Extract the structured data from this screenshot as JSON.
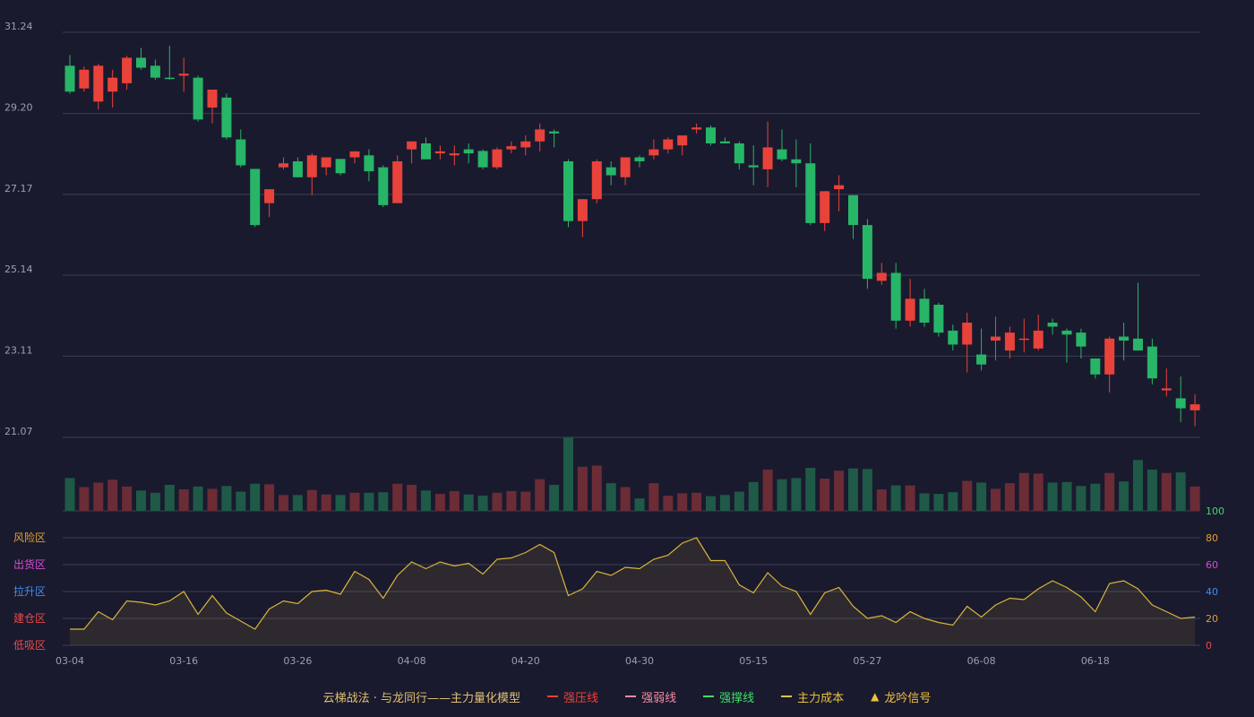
{
  "chart_data": {
    "type": "candlestick",
    "price_axis": {
      "min": 21.07,
      "max": 31.24,
      "ticks": [
        "31.24",
        "29.20",
        "27.17",
        "25.14",
        "23.11",
        "21.07"
      ]
    },
    "x_ticks": [
      {
        "i": 0,
        "label": "03-04"
      },
      {
        "i": 8,
        "label": "03-16"
      },
      {
        "i": 16,
        "label": "03-26"
      },
      {
        "i": 24,
        "label": "04-08"
      },
      {
        "i": 32,
        "label": "04-20"
      },
      {
        "i": 40,
        "label": "04-30"
      },
      {
        "i": 48,
        "label": "05-15"
      },
      {
        "i": 56,
        "label": "05-27"
      },
      {
        "i": 64,
        "label": "06-08"
      },
      {
        "i": 72,
        "label": "06-18"
      }
    ],
    "candles": [
      [
        30.4,
        29.75,
        30.67,
        29.7
      ],
      [
        29.83,
        30.3,
        30.38,
        29.75
      ],
      [
        29.5,
        30.4,
        30.45,
        29.3
      ],
      [
        29.75,
        30.1,
        30.3,
        29.35
      ],
      [
        29.96,
        30.6,
        30.65,
        29.8
      ],
      [
        30.6,
        30.35,
        30.85,
        30.3
      ],
      [
        30.4,
        30.1,
        30.55,
        30.05
      ],
      [
        30.1,
        30.07,
        30.9,
        30.05
      ],
      [
        30.15,
        30.2,
        30.6,
        29.75
      ],
      [
        30.1,
        29.05,
        30.15,
        29.0
      ],
      [
        29.35,
        29.8,
        29.8,
        28.95
      ],
      [
        29.6,
        28.6,
        29.7,
        28.55
      ],
      [
        28.55,
        27.9,
        28.8,
        27.85
      ],
      [
        27.81,
        26.4,
        27.81,
        26.35
      ],
      [
        26.95,
        27.3,
        27.3,
        26.6
      ],
      [
        27.85,
        27.95,
        28.1,
        27.8
      ],
      [
        28.0,
        27.6,
        28.1,
        27.6
      ],
      [
        27.6,
        28.15,
        28.2,
        27.15
      ],
      [
        27.85,
        28.1,
        28.1,
        27.65
      ],
      [
        28.06,
        27.7,
        27.8,
        27.65
      ],
      [
        28.1,
        28.25,
        28.25,
        27.95
      ],
      [
        28.15,
        27.75,
        28.3,
        27.5
      ],
      [
        27.85,
        26.9,
        27.9,
        26.85
      ],
      [
        26.95,
        28.0,
        28.15,
        26.95
      ],
      [
        28.3,
        28.5,
        28.5,
        27.95
      ],
      [
        28.45,
        28.05,
        28.6,
        28.05
      ],
      [
        28.2,
        28.25,
        28.4,
        28.05
      ],
      [
        28.15,
        28.2,
        28.4,
        27.9
      ],
      [
        28.3,
        28.2,
        28.45,
        27.95
      ],
      [
        28.26,
        27.85,
        28.3,
        27.8
      ],
      [
        27.85,
        28.3,
        28.35,
        27.8
      ],
      [
        28.3,
        28.38,
        28.5,
        28.2
      ],
      [
        28.35,
        28.5,
        28.65,
        28.15
      ],
      [
        28.5,
        28.8,
        28.95,
        28.25
      ],
      [
        28.75,
        28.7,
        28.8,
        28.35
      ],
      [
        28.0,
        26.5,
        28.05,
        26.35
      ],
      [
        26.5,
        27.05,
        27.05,
        26.1
      ],
      [
        27.05,
        28.0,
        28.05,
        26.95
      ],
      [
        27.85,
        27.65,
        28.0,
        27.4
      ],
      [
        27.6,
        28.1,
        28.1,
        27.4
      ],
      [
        28.1,
        28.0,
        28.15,
        27.85
      ],
      [
        28.15,
        28.3,
        28.55,
        28.05
      ],
      [
        28.3,
        28.55,
        28.6,
        28.2
      ],
      [
        28.4,
        28.65,
        28.65,
        28.15
      ],
      [
        28.8,
        28.85,
        28.95,
        28.7
      ],
      [
        28.85,
        28.45,
        28.9,
        28.4
      ],
      [
        28.5,
        28.45,
        28.6,
        28.45
      ],
      [
        28.45,
        27.95,
        28.5,
        27.8
      ],
      [
        27.9,
        27.85,
        28.4,
        27.4
      ],
      [
        27.8,
        28.35,
        29.0,
        27.35
      ],
      [
        28.3,
        28.05,
        28.8,
        28.0
      ],
      [
        28.05,
        27.95,
        28.55,
        27.35
      ],
      [
        27.95,
        26.45,
        28.45,
        26.4
      ],
      [
        26.45,
        27.25,
        27.25,
        26.25
      ],
      [
        27.3,
        27.4,
        27.65,
        26.75
      ],
      [
        27.15,
        26.4,
        27.15,
        26.05
      ],
      [
        26.4,
        25.05,
        26.55,
        24.8
      ],
      [
        25.0,
        25.2,
        25.45,
        24.9
      ],
      [
        25.2,
        24.0,
        25.45,
        23.8
      ],
      [
        24.0,
        24.55,
        25.05,
        23.85
      ],
      [
        24.55,
        23.95,
        24.8,
        23.85
      ],
      [
        24.4,
        23.7,
        24.45,
        23.6
      ],
      [
        23.75,
        23.4,
        23.9,
        23.25
      ],
      [
        23.4,
        23.95,
        24.2,
        22.7
      ],
      [
        23.15,
        22.9,
        23.8,
        22.75
      ],
      [
        23.5,
        23.6,
        24.1,
        23.0
      ],
      [
        23.25,
        23.7,
        23.85,
        23.05
      ],
      [
        23.55,
        23.55,
        24.05,
        23.2
      ],
      [
        23.3,
        23.75,
        24.15,
        23.25
      ],
      [
        23.95,
        23.85,
        24.05,
        23.65
      ],
      [
        23.75,
        23.65,
        23.8,
        22.95
      ],
      [
        23.7,
        23.35,
        23.8,
        23.05
      ],
      [
        23.05,
        22.65,
        23.05,
        22.55
      ],
      [
        22.65,
        23.55,
        23.6,
        22.2
      ],
      [
        23.6,
        23.5,
        23.95,
        23.0
      ],
      [
        23.55,
        23.25,
        24.95,
        23.25
      ],
      [
        23.35,
        22.55,
        23.55,
        22.4
      ],
      [
        22.25,
        22.3,
        22.8,
        22.1
      ],
      [
        22.05,
        21.8,
        22.6,
        21.45
      ],
      [
        21.75,
        21.9,
        22.15,
        21.35
      ]
    ],
    "volume": [
      0.58,
      0.42,
      0.5,
      0.55,
      0.43,
      0.36,
      0.32,
      0.46,
      0.38,
      0.43,
      0.39,
      0.44,
      0.34,
      0.48,
      0.47,
      0.28,
      0.28,
      0.37,
      0.29,
      0.28,
      0.32,
      0.32,
      0.33,
      0.48,
      0.46,
      0.36,
      0.3,
      0.35,
      0.29,
      0.27,
      0.32,
      0.35,
      0.34,
      0.56,
      0.46,
      1.3,
      0.78,
      0.8,
      0.49,
      0.42,
      0.22,
      0.49,
      0.27,
      0.31,
      0.32,
      0.26,
      0.28,
      0.34,
      0.51,
      0.73,
      0.56,
      0.58,
      0.76,
      0.57,
      0.71,
      0.75,
      0.74,
      0.38,
      0.45,
      0.45,
      0.31,
      0.3,
      0.33,
      0.53,
      0.5,
      0.39,
      0.49,
      0.67,
      0.66,
      0.5,
      0.51,
      0.44,
      0.48,
      0.67,
      0.52,
      0.9,
      0.73,
      0.67,
      0.68,
      0.43
    ],
    "indicator": {
      "name": "主力量化模型",
      "axis_left": [
        "风险区",
        "出货区",
        "拉升区",
        "建仓区",
        "低吸区"
      ],
      "axis_right": [
        "100",
        "80",
        "60",
        "40",
        "20",
        "0"
      ],
      "values": [
        12,
        12,
        25,
        19,
        33,
        32,
        30,
        33,
        40,
        23,
        37,
        24,
        18,
        12,
        27,
        33,
        31,
        40,
        41,
        38,
        55,
        49,
        35,
        52,
        62,
        57,
        62,
        59,
        61,
        53,
        64,
        65,
        69,
        75,
        69,
        37,
        42,
        55,
        52,
        58,
        57,
        64,
        67,
        76,
        80,
        63,
        63,
        45,
        39,
        54,
        44,
        40,
        23,
        39,
        43,
        29,
        20,
        22,
        17,
        25,
        20,
        17,
        15,
        29,
        21,
        30,
        35,
        34,
        42,
        48,
        43,
        36,
        25,
        46,
        48,
        42,
        30,
        25,
        20,
        21
      ]
    },
    "colors": {
      "up": "#e9423a",
      "down": "#27b567",
      "vol_up": "#6b2c36",
      "vol_down": "#1e5a47",
      "indicator_line": "#d9b43a",
      "grid": "#3a3f53",
      "axis_text": "#9aa0b0",
      "zone_risk": "#e0a030",
      "zone_distribute": "#d14fd1",
      "zone_rise": "#3f8ef0",
      "zone_build": "#e64b4b",
      "zone_low": "#e64b4b",
      "rv_100": "#3ddc6a",
      "rv_80": "#e0a030",
      "rv_60": "#d14fd1",
      "rv_40": "#3f8ef0",
      "rv_20": "#e0a030",
      "rv_0": "#e64b4b"
    }
  },
  "legend": {
    "title": "云梯战法 · 与龙同行——主力量化模型",
    "items": [
      {
        "label": "强压线",
        "color": "#e9423a",
        "style": "solid"
      },
      {
        "label": "强弱线",
        "color": "#f08aa0",
        "style": "dashed"
      },
      {
        "label": "强撑线",
        "color": "#3ddc6a",
        "style": "solid"
      },
      {
        "label": "主力成本",
        "color": "#e6c23a",
        "style": "dashed"
      },
      {
        "label": "龙吟信号",
        "color": "#f0c040",
        "style": "triangle"
      }
    ]
  }
}
